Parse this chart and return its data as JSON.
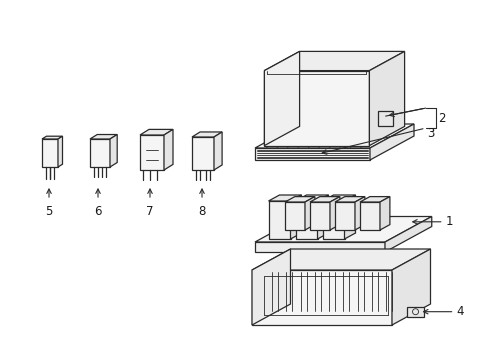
{
  "background_color": "#ffffff",
  "line_color": "#2a2a2a",
  "line_width": 0.9,
  "thin_line": 0.6,
  "fig_width": 4.89,
  "fig_height": 3.6,
  "dpi": 100,
  "label_fontsize": 8.5,
  "label_color": "#1a1a1a"
}
